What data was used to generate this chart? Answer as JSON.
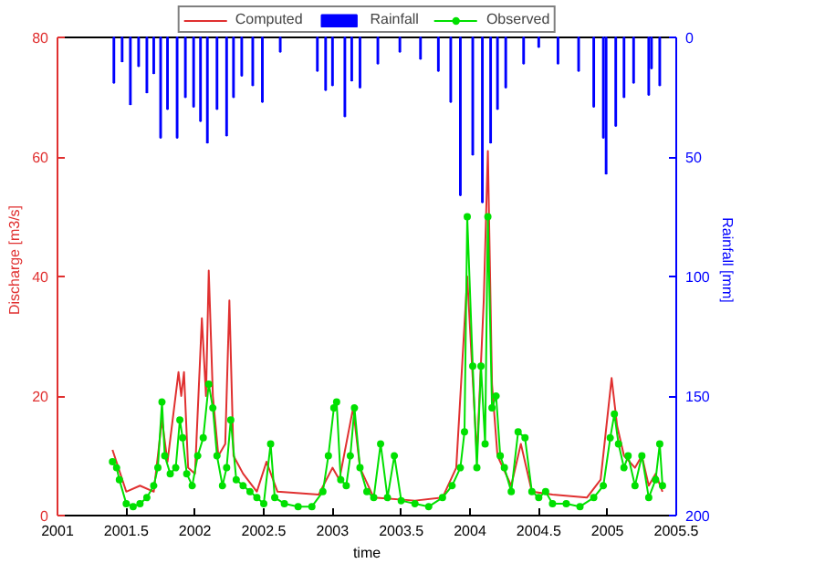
{
  "chart_data": {
    "type": "line",
    "xlabel": "time",
    "ylabel": "Discharge [m3/s]",
    "y2label": "Rainfall [mm]",
    "xlim": [
      2001,
      2005.5
    ],
    "xticks": [
      2001,
      2001.5,
      2002,
      2002.5,
      2003,
      2003.5,
      2004,
      2004.5,
      2005,
      2005.5
    ],
    "ylim": [
      0,
      80
    ],
    "yticks": [
      0,
      20,
      40,
      60,
      80
    ],
    "y2lim": [
      200,
      0
    ],
    "y2ticks": [
      0,
      50,
      100,
      150,
      200
    ],
    "grid": false,
    "legend": "top",
    "series": [
      {
        "name": "Computed",
        "color": "#e03030",
        "marker": "none",
        "x": [
          2001.4,
          2001.5,
          2001.6,
          2001.7,
          2001.76,
          2001.8,
          2001.88,
          2001.9,
          2001.92,
          2001.95,
          2002.0,
          2002.05,
          2002.08,
          2002.1,
          2002.13,
          2002.17,
          2002.22,
          2002.25,
          2002.28,
          2002.35,
          2002.45,
          2002.52,
          2002.6,
          2002.9,
          2003.0,
          2003.05,
          2003.15,
          2003.2,
          2003.3,
          2003.6,
          2003.8,
          2003.9,
          2003.98,
          2004.05,
          2004.1,
          2004.13,
          2004.16,
          2004.2,
          2004.3,
          2004.37,
          2004.45,
          2004.6,
          2004.85,
          2004.95,
          2005.03,
          2005.07,
          2005.12,
          2005.2,
          2005.25,
          2005.3,
          2005.35,
          2005.4
        ],
        "values": [
          11,
          4,
          5,
          4,
          16,
          9,
          24,
          20,
          24,
          8,
          7,
          33,
          20,
          41,
          20,
          10,
          12,
          36,
          10,
          7,
          4,
          9,
          4,
          3.5,
          8,
          6,
          18,
          8,
          3,
          2.5,
          3,
          8,
          40,
          10,
          36,
          61,
          22,
          10,
          5,
          12,
          4,
          3.5,
          3,
          6,
          23,
          15,
          10,
          8,
          10,
          5,
          7,
          4
        ]
      },
      {
        "name": "Rainfall",
        "type": "bar",
        "axis": "y2",
        "color": "#0000ff",
        "x": [
          2001.41,
          2001.47,
          2001.53,
          2001.59,
          2001.65,
          2001.7,
          2001.75,
          2001.8,
          2001.87,
          2001.93,
          2001.99,
          2002.04,
          2002.09,
          2002.16,
          2002.23,
          2002.28,
          2002.34,
          2002.42,
          2002.49,
          2002.62,
          2002.89,
          2002.95,
          2003.0,
          2003.09,
          2003.14,
          2003.2,
          2003.33,
          2003.49,
          2003.64,
          2003.77,
          2003.86,
          2003.93,
          2004.02,
          2004.09,
          2004.15,
          2004.2,
          2004.26,
          2004.39,
          2004.5,
          2004.64,
          2004.79,
          2004.9,
          2004.97,
          2004.99,
          2005.06,
          2005.12,
          2005.19,
          2005.3,
          2005.32,
          2005.38
        ],
        "values": [
          19,
          10,
          28,
          12,
          23,
          15,
          42,
          30,
          42,
          25,
          29,
          35,
          44,
          30,
          41,
          25,
          16,
          20,
          27,
          6,
          14,
          22,
          20,
          33,
          18,
          21,
          11,
          6,
          9,
          14,
          27,
          66,
          49,
          69,
          44,
          30,
          21,
          11,
          4,
          11,
          14,
          29,
          42,
          57,
          37,
          25,
          19,
          24,
          13,
          20
        ]
      },
      {
        "name": "Observed",
        "color": "#00e000",
        "marker": "circle",
        "x": [
          2001.4,
          2001.43,
          2001.45,
          2001.5,
          2001.55,
          2001.6,
          2001.65,
          2001.7,
          2001.73,
          2001.76,
          2001.78,
          2001.82,
          2001.86,
          2001.89,
          2001.91,
          2001.94,
          2001.98,
          2002.02,
          2002.06,
          2002.1,
          2002.13,
          2002.16,
          2002.2,
          2002.23,
          2002.26,
          2002.3,
          2002.35,
          2002.4,
          2002.45,
          2002.5,
          2002.55,
          2002.58,
          2002.65,
          2002.75,
          2002.85,
          2002.93,
          2002.97,
          2003.01,
          2003.03,
          2003.06,
          2003.1,
          2003.13,
          2003.16,
          2003.2,
          2003.25,
          2003.3,
          2003.35,
          2003.4,
          2003.45,
          2003.5,
          2003.6,
          2003.7,
          2003.8,
          2003.87,
          2003.93,
          2003.96,
          2003.98,
          2004.02,
          2004.05,
          2004.08,
          2004.11,
          2004.13,
          2004.16,
          2004.19,
          2004.22,
          2004.25,
          2004.3,
          2004.35,
          2004.4,
          2004.45,
          2004.5,
          2004.55,
          2004.6,
          2004.7,
          2004.8,
          2004.9,
          2004.97,
          2005.02,
          2005.05,
          2005.08,
          2005.12,
          2005.15,
          2005.2,
          2005.25,
          2005.3,
          2005.35,
          2005.38,
          2005.4
        ],
        "values": [
          9,
          8,
          6,
          2,
          1.5,
          2,
          3,
          5,
          8,
          19,
          10,
          7,
          8,
          16,
          13,
          7,
          5,
          10,
          13,
          22,
          18,
          10,
          5,
          8,
          16,
          6,
          5,
          4,
          3,
          2,
          12,
          3,
          2,
          1.5,
          1.5,
          4,
          10,
          18,
          19,
          6,
          5,
          10,
          18,
          8,
          4,
          3,
          12,
          3,
          10,
          2.5,
          2,
          1.5,
          3,
          5,
          8,
          14,
          50,
          25,
          8,
          25,
          12,
          50,
          18,
          20,
          10,
          8,
          4,
          14,
          13,
          4,
          3,
          4,
          2,
          2,
          1.5,
          3,
          5,
          13,
          17,
          12,
          8,
          10,
          5,
          10,
          3,
          6,
          12,
          5
        ]
      }
    ]
  }
}
